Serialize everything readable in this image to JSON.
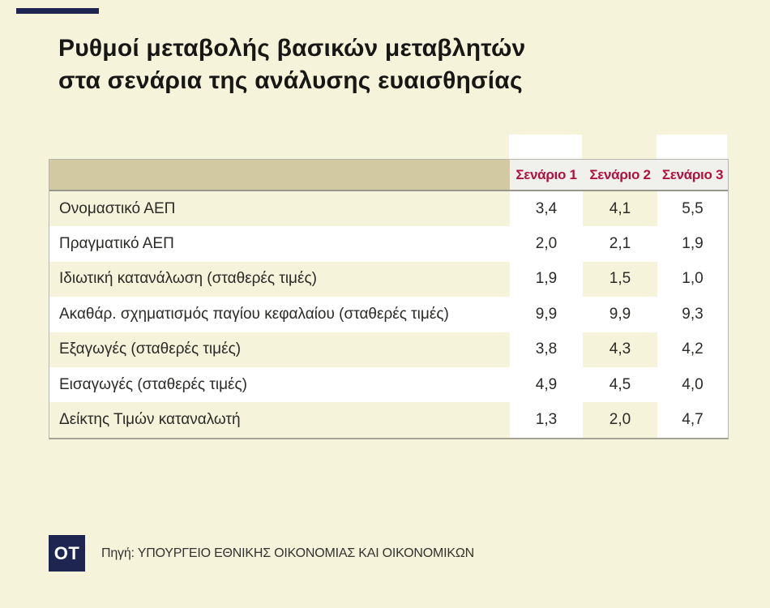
{
  "header": {
    "title_line1": "Ρυθμοί μεταβολής βασικών μεταβλητών",
    "title_line2": "στα σενάρια της ανάλυσης ευαισθησίας"
  },
  "colors": {
    "background": "#f5f3da",
    "accent_navy": "#1d2550",
    "header_tan": "#d2c9a3",
    "header_gray": "#f0f0ed",
    "scenario_red": "#b01240",
    "highlight_white": "#ffffff"
  },
  "chart_data": {
    "type": "table",
    "title": "Ρυθμοί μεταβολής βασικών μεταβλητών στα σενάρια της ανάλυσης ευαισθησίας",
    "columns": [
      "Σενάριο 1",
      "Σενάριο 2",
      "Σενάριο 3"
    ],
    "rows": [
      {
        "label": "Ονομαστικό ΑΕΠ",
        "values": [
          "3,4",
          "4,1",
          "5,5"
        ]
      },
      {
        "label": "Πραγματικό ΑΕΠ",
        "values": [
          "2,0",
          "2,1",
          "1,9"
        ]
      },
      {
        "label": "Ιδιωτική κατανάλωση (σταθερές τιμές)",
        "values": [
          "1,9",
          "1,5",
          "1,0"
        ]
      },
      {
        "label": "Ακαθάρ. σχηματισμός παγίου κεφαλαίου (σταθερές τιμές)",
        "values": [
          "9,9",
          "9,9",
          "9,3"
        ]
      },
      {
        "label": "Εξαγωγές (σταθερές τιμές)",
        "values": [
          "3,8",
          "4,3",
          "4,2"
        ]
      },
      {
        "label": "Εισαγωγές (σταθερές τιμές)",
        "values": [
          "4,9",
          "4,5",
          "4,0"
        ]
      },
      {
        "label": "Δείκτης Τιμών καταναλωτή",
        "values": [
          "1,3",
          "2,0",
          "4,7"
        ]
      }
    ],
    "layout": {
      "striped_rows": true,
      "white_column_bands": [
        1,
        3
      ],
      "decimal_separator": ","
    }
  },
  "footer": {
    "logo_text": "OT",
    "source": "Πηγή: ΥΠΟΥΡΓΕΙΟ ΕΘΝΙΚΗΣ ΟΙΚΟΝΟΜΙΑΣ ΚΑΙ ΟΙΚΟΝΟΜΙΚΩΝ"
  }
}
